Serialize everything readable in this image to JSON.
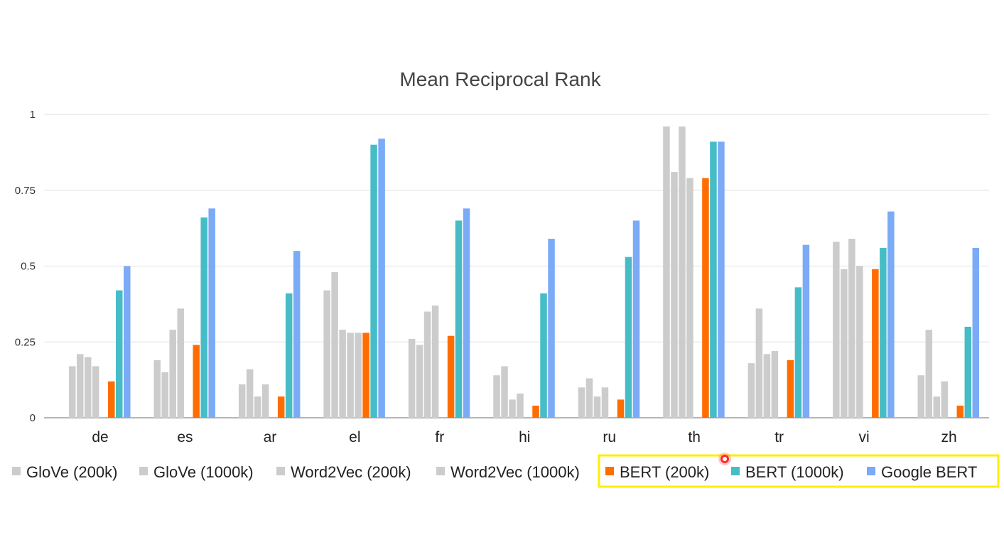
{
  "chart_data": {
    "type": "bar",
    "title": "Mean Reciprocal Rank",
    "xlabel": "",
    "ylabel": "",
    "ylim": [
      0,
      1
    ],
    "yticks": [
      "0",
      "0.25",
      "0.5",
      "0.75",
      "1"
    ],
    "grid": true,
    "legend_position": "bottom",
    "categories": [
      "de",
      "es",
      "ar",
      "el",
      "fr",
      "hi",
      "ru",
      "th",
      "tr",
      "vi",
      "zh"
    ],
    "series": [
      {
        "name": "GloVe (200k)",
        "color": "#cccccc",
        "values": [
          0.17,
          0.19,
          0.11,
          0.42,
          0.26,
          0.14,
          0.1,
          0.96,
          0.18,
          0.58,
          0.14
        ]
      },
      {
        "name": "GloVe (1000k)",
        "color": "#cccccc",
        "values": [
          0.21,
          0.15,
          0.16,
          0.48,
          0.24,
          0.17,
          0.13,
          0.81,
          0.36,
          0.49,
          0.29
        ]
      },
      {
        "name": "Word2Vec (200k)",
        "color": "#cccccc",
        "values": [
          0.2,
          0.29,
          0.07,
          0.29,
          0.35,
          0.06,
          0.07,
          0.96,
          0.21,
          0.59,
          0.07
        ]
      },
      {
        "name": "Word2Vec (1000k)",
        "color": "#cccccc",
        "values": [
          0.17,
          0.36,
          0.11,
          0.28,
          0.37,
          0.08,
          0.1,
          0.79,
          0.22,
          0.5,
          0.12
        ]
      },
      {
        "name": "",
        "color": "#cccccc",
        "values": [
          0.0,
          0.0,
          0.0,
          0.28,
          0.0,
          0.0,
          0.0,
          0.0,
          0.0,
          0.0,
          0.0
        ]
      },
      {
        "name": "BERT (200k)",
        "color": "#ff6d01",
        "values": [
          0.12,
          0.24,
          0.07,
          0.28,
          0.27,
          0.04,
          0.06,
          0.79,
          0.19,
          0.49,
          0.04
        ]
      },
      {
        "name": "BERT (1000k)",
        "color": "#46bdc6",
        "values": [
          0.42,
          0.66,
          0.41,
          0.9,
          0.65,
          0.41,
          0.53,
          0.91,
          0.43,
          0.56,
          0.3
        ]
      },
      {
        "name": "Google BERT",
        "color": "#7baaf7",
        "values": [
          0.5,
          0.69,
          0.55,
          0.92,
          0.69,
          0.59,
          0.65,
          0.91,
          0.57,
          0.68,
          0.56
        ]
      }
    ],
    "legend": [
      {
        "name": "GloVe (200k)",
        "color": "#cccccc"
      },
      {
        "name": "GloVe (1000k)",
        "color": "#cccccc"
      },
      {
        "name": "Word2Vec (200k)",
        "color": "#cccccc"
      },
      {
        "name": "Word2Vec (1000k)",
        "color": "#cccccc"
      },
      {
        "name": "BERT (200k)",
        "color": "#ff6d01"
      },
      {
        "name": "BERT (1000k)",
        "color": "#46bdc6"
      },
      {
        "name": "Google BERT",
        "color": "#7baaf7"
      }
    ],
    "highlight": {
      "color": "#ffee00",
      "covers": [
        "BERT (200k)",
        "BERT (1000k)",
        "Google BERT"
      ]
    },
    "cursor": {
      "color": "#ff2a2a"
    }
  }
}
